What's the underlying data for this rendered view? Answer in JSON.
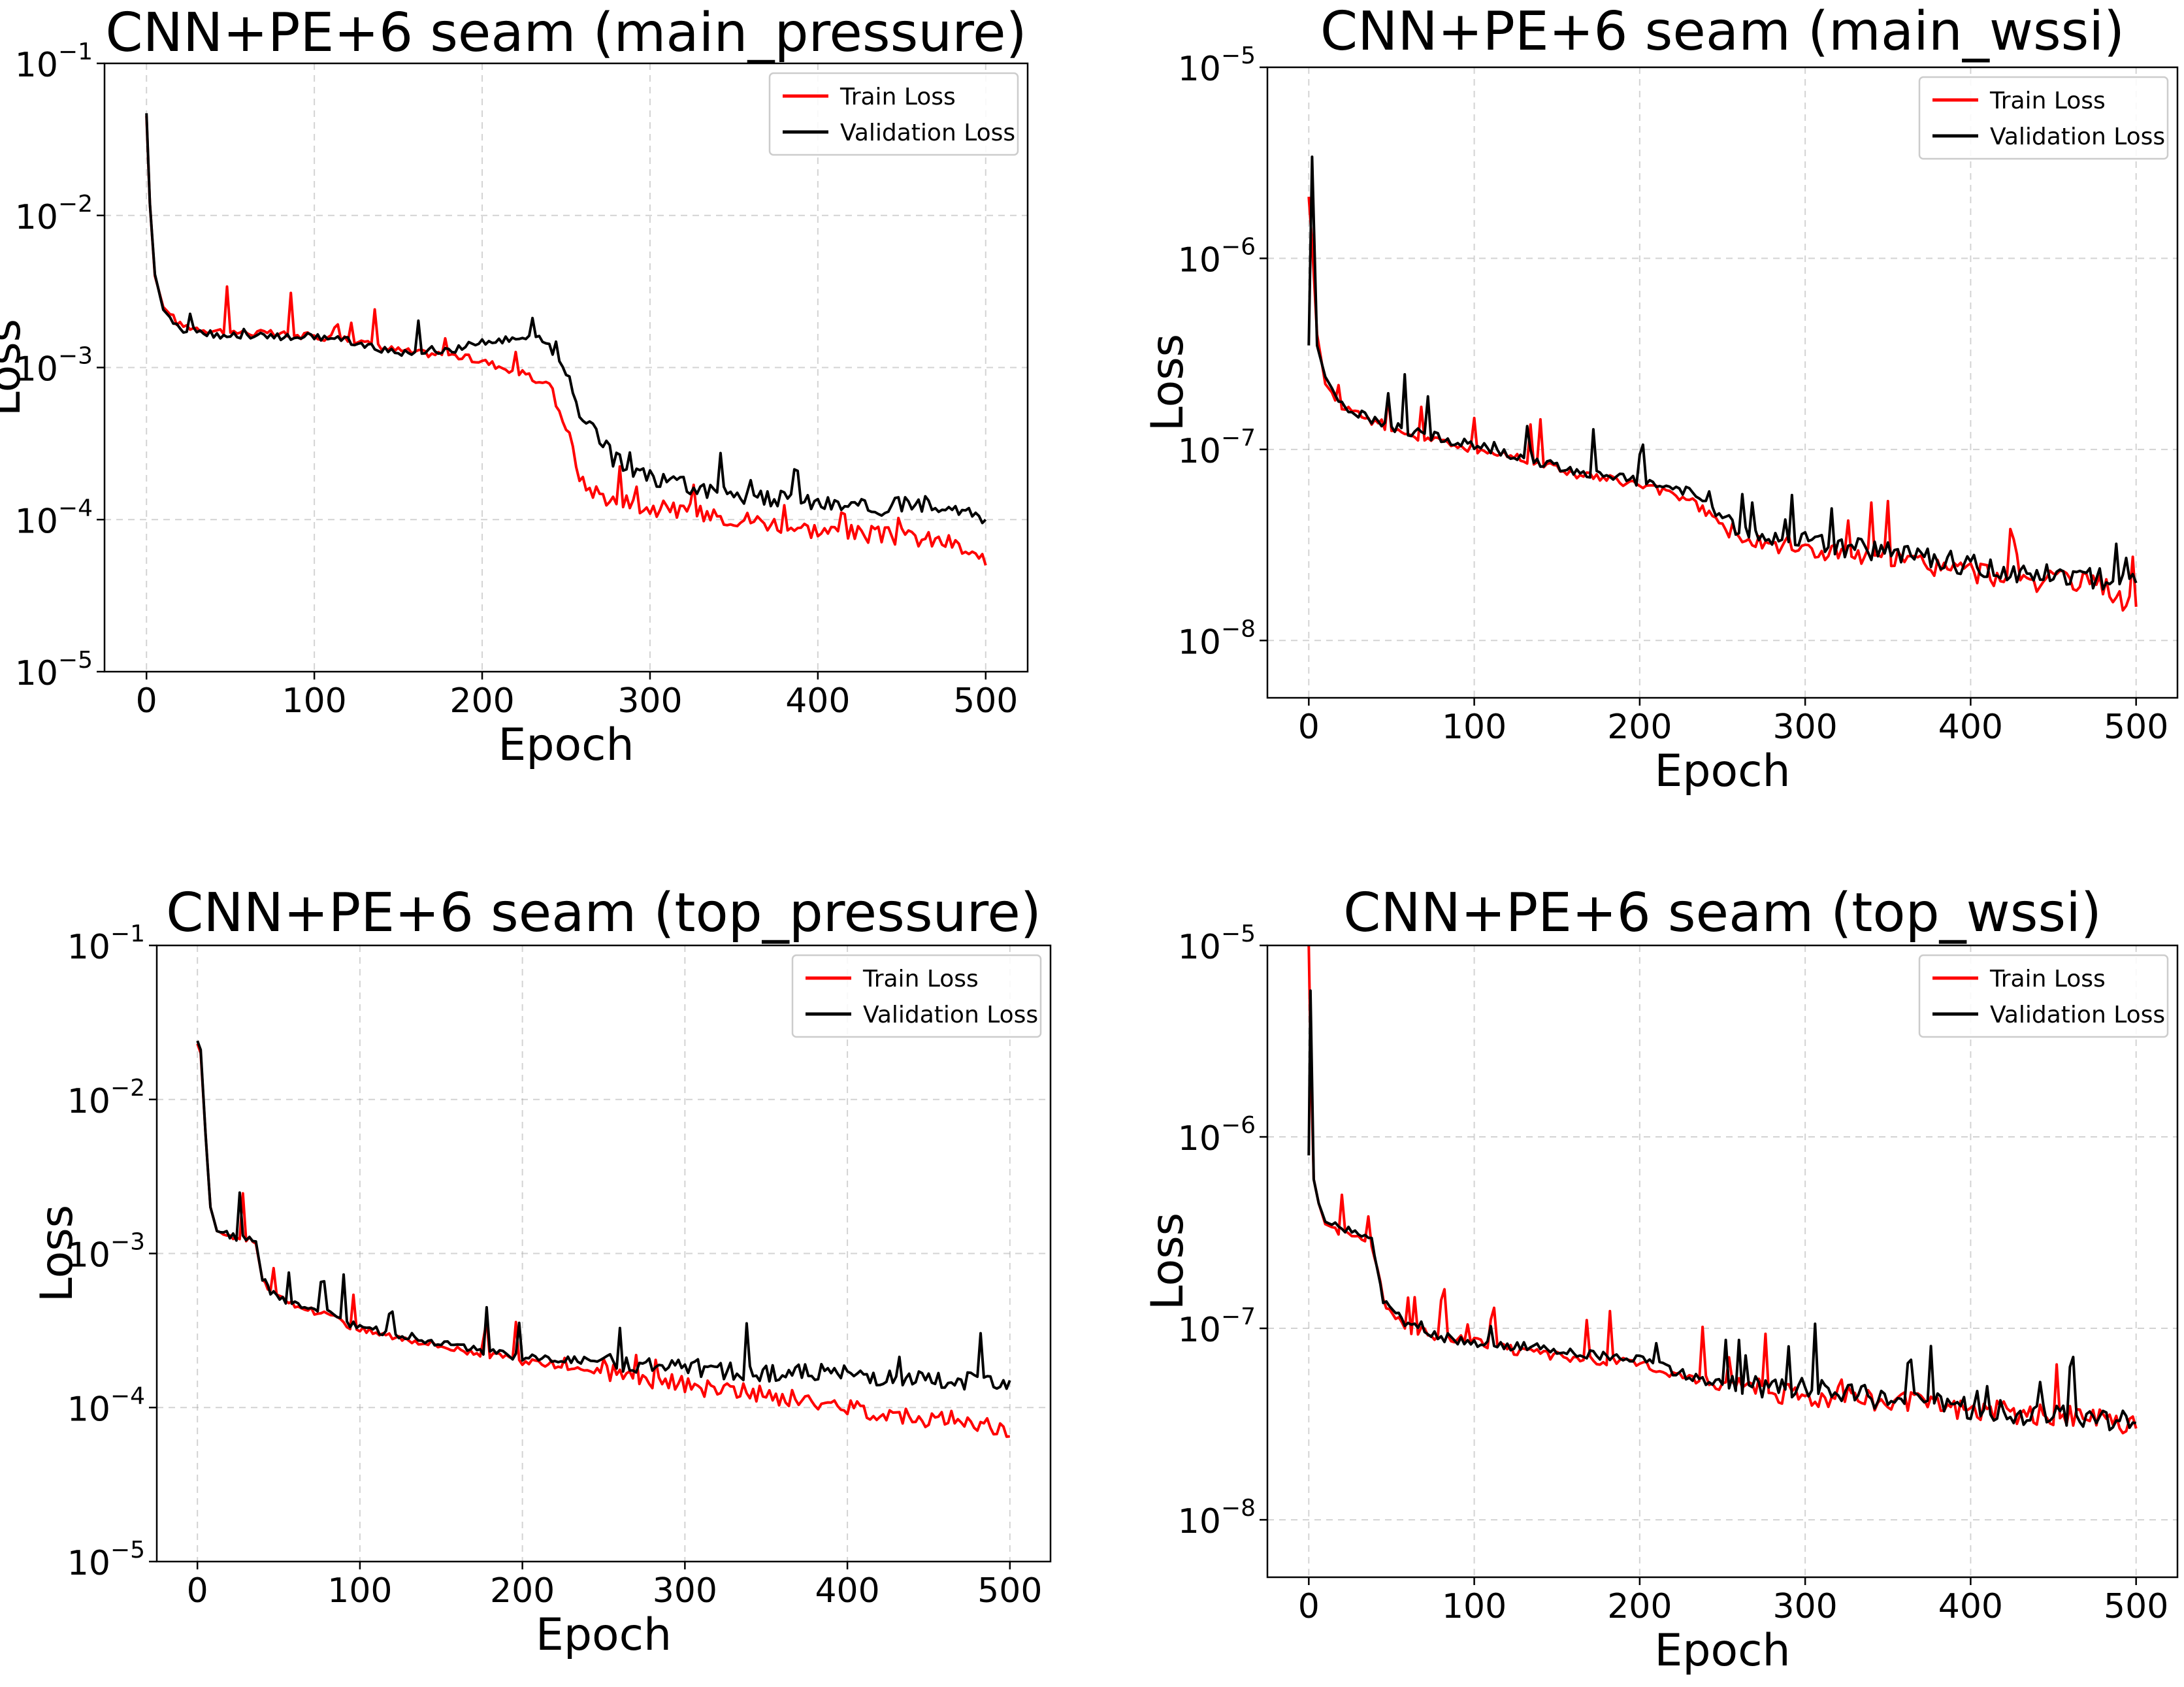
{
  "chart_data": [
    {
      "type": "line",
      "title": "CNN+PE+6 seam (main_pressure)",
      "xlabel": "Epoch",
      "ylabel": "Loss",
      "yscale": "log",
      "xlim": [
        -25,
        525
      ],
      "ylim_exp": [
        -5,
        -1
      ],
      "xticks": [
        0,
        100,
        200,
        300,
        400,
        500
      ],
      "yticks": [
        {
          "base": "10",
          "exp": "−1"
        },
        {
          "base": "10",
          "exp": "−2"
        },
        {
          "base": "10",
          "exp": "−3"
        },
        {
          "base": "10",
          "exp": "−4"
        },
        {
          "base": "10",
          "exp": "−5"
        }
      ],
      "grid": true,
      "legend_position": "top-right",
      "series": [
        {
          "name": "Train Loss",
          "color": "#ff0000",
          "x": [
            0,
            2,
            5,
            10,
            20,
            40,
            60,
            80,
            100,
            120,
            140,
            160,
            180,
            200,
            220,
            240,
            250,
            260,
            280,
            300,
            330,
            360,
            400,
            430,
            460,
            480,
            500
          ],
          "y": [
            0.045,
            0.012,
            0.004,
            0.0025,
            0.0019,
            0.00175,
            0.0017,
            0.00165,
            0.0016,
            0.00155,
            0.00135,
            0.00125,
            0.00122,
            0.0011,
            0.00095,
            0.00075,
            0.0004,
            0.00017,
            0.00013,
            0.00012,
            0.00011,
            0.0001,
            8.5e-05,
            8e-05,
            7.5e-05,
            7e-05,
            5e-05
          ]
        },
        {
          "name": "Validation Loss",
          "color": "#000000",
          "x": [
            0,
            2,
            5,
            10,
            20,
            40,
            60,
            80,
            100,
            120,
            140,
            160,
            180,
            200,
            210,
            220,
            230,
            240,
            250,
            260,
            280,
            300,
            330,
            360,
            400,
            430,
            460,
            480,
            500
          ],
          "y": [
            0.047,
            0.012,
            0.0041,
            0.0024,
            0.0018,
            0.00165,
            0.0016,
            0.0016,
            0.0016,
            0.0015,
            0.0013,
            0.00125,
            0.0013,
            0.00145,
            0.0015,
            0.00155,
            0.00165,
            0.0014,
            0.0009,
            0.00045,
            0.00024,
            0.00019,
            0.00016,
            0.00014,
            0.00013,
            0.00012,
            0.000125,
            0.00013,
            0.0001
          ]
        }
      ]
    },
    {
      "type": "line",
      "title": "CNN+PE+6 seam (main_wssi)",
      "xlabel": "Epoch",
      "ylabel": "Loss",
      "yscale": "log",
      "xlim": [
        -25,
        525
      ],
      "ylim_exp": [
        -8.3,
        -5
      ],
      "xticks": [
        0,
        100,
        200,
        300,
        400,
        500
      ],
      "yticks": [
        {
          "base": "10",
          "exp": "−5"
        },
        {
          "base": "10",
          "exp": "−6"
        },
        {
          "base": "10",
          "exp": "−7"
        },
        {
          "base": "10",
          "exp": "−8"
        }
      ],
      "grid": true,
      "legend_position": "top-right",
      "series": [
        {
          "name": "Train Loss",
          "color": "#ff0000",
          "x": [
            0,
            2,
            5,
            10,
            20,
            40,
            60,
            80,
            100,
            130,
            160,
            200,
            230,
            250,
            270,
            300,
            330,
            360,
            400,
            430,
            460,
            480,
            500
          ],
          "y": [
            2.1e-06,
            1.2e-06,
            4e-07,
            2.2e-07,
            1.7e-07,
            1.4e-07,
            1.2e-07,
            1.1e-07,
            1e-07,
            9e-08,
            7.5e-08,
            6.5e-08,
            5.5e-08,
            4e-08,
            3.5e-08,
            3e-08,
            2.8e-08,
            2.6e-08,
            2.3e-08,
            2.1e-08,
            2e-08,
            1.9e-08,
            1.5e-08
          ]
        },
        {
          "name": "Validation Loss",
          "color": "#000000",
          "x": [
            0,
            2,
            5,
            10,
            20,
            40,
            60,
            80,
            100,
            130,
            160,
            200,
            230,
            250,
            270,
            300,
            330,
            360,
            400,
            430,
            460,
            480,
            500
          ],
          "y": [
            3.5e-07,
            3.4e-06,
            3.5e-07,
            2.4e-07,
            1.7e-07,
            1.4e-07,
            1.25e-07,
            1.15e-07,
            1.05e-07,
            9e-08,
            7.8e-08,
            6.8e-08,
            6e-08,
            4.3e-08,
            3.8e-08,
            3.3e-08,
            3e-08,
            2.8e-08,
            2.5e-08,
            2.3e-08,
            2.2e-08,
            2.1e-08,
            2e-08
          ]
        }
      ]
    },
    {
      "type": "line",
      "title": "CNN+PE+6 seam (top_pressure)",
      "xlabel": "Epoch",
      "ylabel": "Loss",
      "yscale": "log",
      "xlim": [
        -25,
        525
      ],
      "ylim_exp": [
        -5,
        -1
      ],
      "xticks": [
        0,
        100,
        200,
        300,
        400,
        500
      ],
      "yticks": [
        {
          "base": "10",
          "exp": "−1"
        },
        {
          "base": "10",
          "exp": "−2"
        },
        {
          "base": "10",
          "exp": "−3"
        },
        {
          "base": "10",
          "exp": "−4"
        },
        {
          "base": "10",
          "exp": "−5"
        }
      ],
      "grid": true,
      "legend_position": "top-right",
      "series": [
        {
          "name": "Train Loss",
          "color": "#ff0000",
          "x": [
            0,
            2,
            5,
            8,
            12,
            20,
            30,
            36,
            40,
            45,
            60,
            80,
            100,
            130,
            160,
            200,
            250,
            300,
            350,
            400,
            450,
            480,
            500
          ],
          "y": [
            0.023,
            0.02,
            0.006,
            0.002,
            0.0014,
            0.0013,
            0.00125,
            0.0012,
            0.0007,
            0.00055,
            0.00046,
            0.0004,
            0.00032,
            0.00028,
            0.00024,
            0.0002,
            0.00017,
            0.00014,
            0.00012,
            0.0001,
            8.5e-05,
            8e-05,
            6.5e-05
          ]
        },
        {
          "name": "Validation Loss",
          "color": "#000000",
          "x": [
            0,
            2,
            5,
            8,
            12,
            20,
            30,
            36,
            40,
            45,
            60,
            80,
            100,
            130,
            160,
            200,
            250,
            300,
            350,
            400,
            450,
            480,
            500
          ],
          "y": [
            0.024,
            0.021,
            0.006,
            0.002,
            0.0014,
            0.0013,
            0.00125,
            0.0012,
            0.0007,
            0.00056,
            0.00047,
            0.00041,
            0.00033,
            0.00029,
            0.00025,
            0.00021,
            0.0002,
            0.00018,
            0.00017,
            0.000165,
            0.00015,
            0.00015,
            0.00015
          ]
        }
      ]
    },
    {
      "type": "line",
      "title": "CNN+PE+6 seam (top_wssi)",
      "xlabel": "Epoch",
      "ylabel": "Loss",
      "yscale": "log",
      "xlim": [
        -25,
        525
      ],
      "ylim_exp": [
        -8.3,
        -5
      ],
      "xticks": [
        0,
        100,
        200,
        300,
        400,
        500
      ],
      "yticks": [
        {
          "base": "10",
          "exp": "−5"
        },
        {
          "base": "10",
          "exp": "−6"
        },
        {
          "base": "10",
          "exp": "−7"
        },
        {
          "base": "10",
          "exp": "−8"
        }
      ],
      "grid": true,
      "legend_position": "top-right",
      "series": [
        {
          "name": "Train Loss",
          "color": "#ff0000",
          "x": [
            0,
            1,
            3,
            6,
            10,
            20,
            30,
            38,
            45,
            60,
            80,
            100,
            130,
            160,
            200,
            250,
            300,
            350,
            400,
            450,
            480,
            500
          ],
          "y": [
            1e-05,
            3e-06,
            6e-07,
            4.5e-07,
            3.5e-07,
            3.2e-07,
            3e-07,
            2.8e-07,
            1.4e-07,
            1e-07,
            9e-08,
            8.5e-08,
            7.5e-08,
            7e-08,
            6.5e-08,
            5e-08,
            4.5e-08,
            4.2e-08,
            3.8e-08,
            3.5e-08,
            3.3e-08,
            3e-08
          ]
        },
        {
          "name": "Validation Loss",
          "color": "#000000",
          "x": [
            0,
            1,
            3,
            6,
            10,
            20,
            30,
            38,
            45,
            60,
            80,
            100,
            130,
            160,
            200,
            250,
            300,
            350,
            400,
            450,
            480,
            500
          ],
          "y": [
            8e-07,
            5.8e-06,
            6e-07,
            4.5e-07,
            3.6e-07,
            3.3e-07,
            3.1e-07,
            2.9e-07,
            1.4e-07,
            1.05e-07,
            9e-08,
            8.5e-08,
            8e-08,
            7.5e-08,
            6.8e-08,
            5e-08,
            4.8e-08,
            4.3e-08,
            3.8e-08,
            3.5e-08,
            3.4e-08,
            3.2e-08
          ]
        }
      ]
    }
  ]
}
